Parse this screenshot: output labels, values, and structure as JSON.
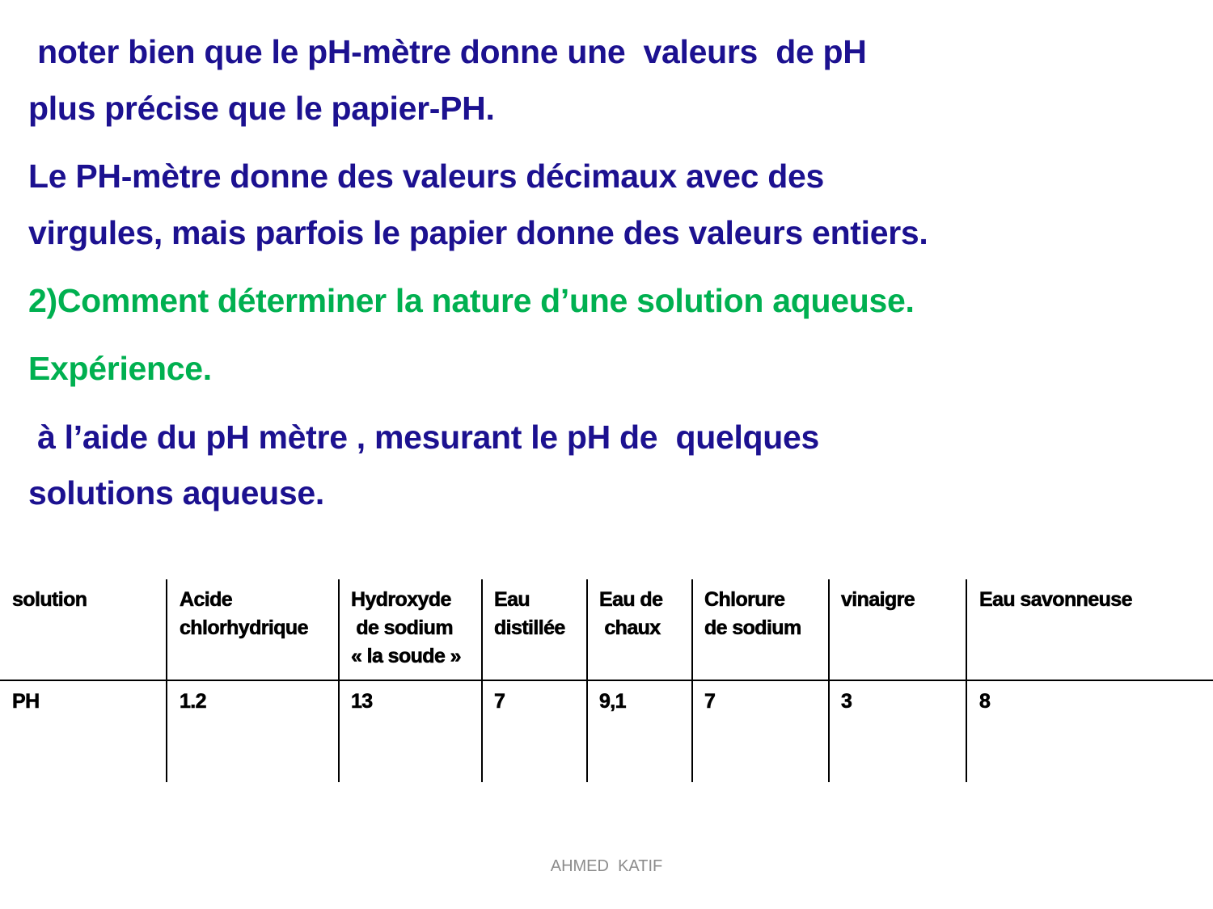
{
  "text": {
    "line1": " noter bien que le pH-mètre donne une  valeurs  de pH",
    "line2": "plus précise que le papier-PH.",
    "line3": "Le PH-mètre donne des valeurs décimaux avec des",
    "line4": "virgules, mais parfois le papier donne des valeurs entiers.",
    "heading": "2)Comment déterminer la nature d’une solution aqueuse.",
    "subheading": "Expérience.",
    "line5": " à l’aide du pH mètre , mesurant le pH de  quelques",
    "line6": "solutions aqueuse."
  },
  "colors": {
    "body_text": "#1c1190",
    "heading": "#00b050"
  },
  "table": {
    "headers": [
      "solution",
      "Acide\nchlorhydrique",
      "Hydroxyde\n de sodium\n« la soude »",
      "Eau\ndistillée",
      "Eau de\n chaux",
      "Chlorure\nde sodium",
      "vinaigre",
      "Eau savonneuse"
    ],
    "row": [
      "PH",
      "1.2",
      "13",
      "7",
      "9,1",
      "7",
      "3",
      "8"
    ]
  },
  "footer": "AHMED  KATIF"
}
